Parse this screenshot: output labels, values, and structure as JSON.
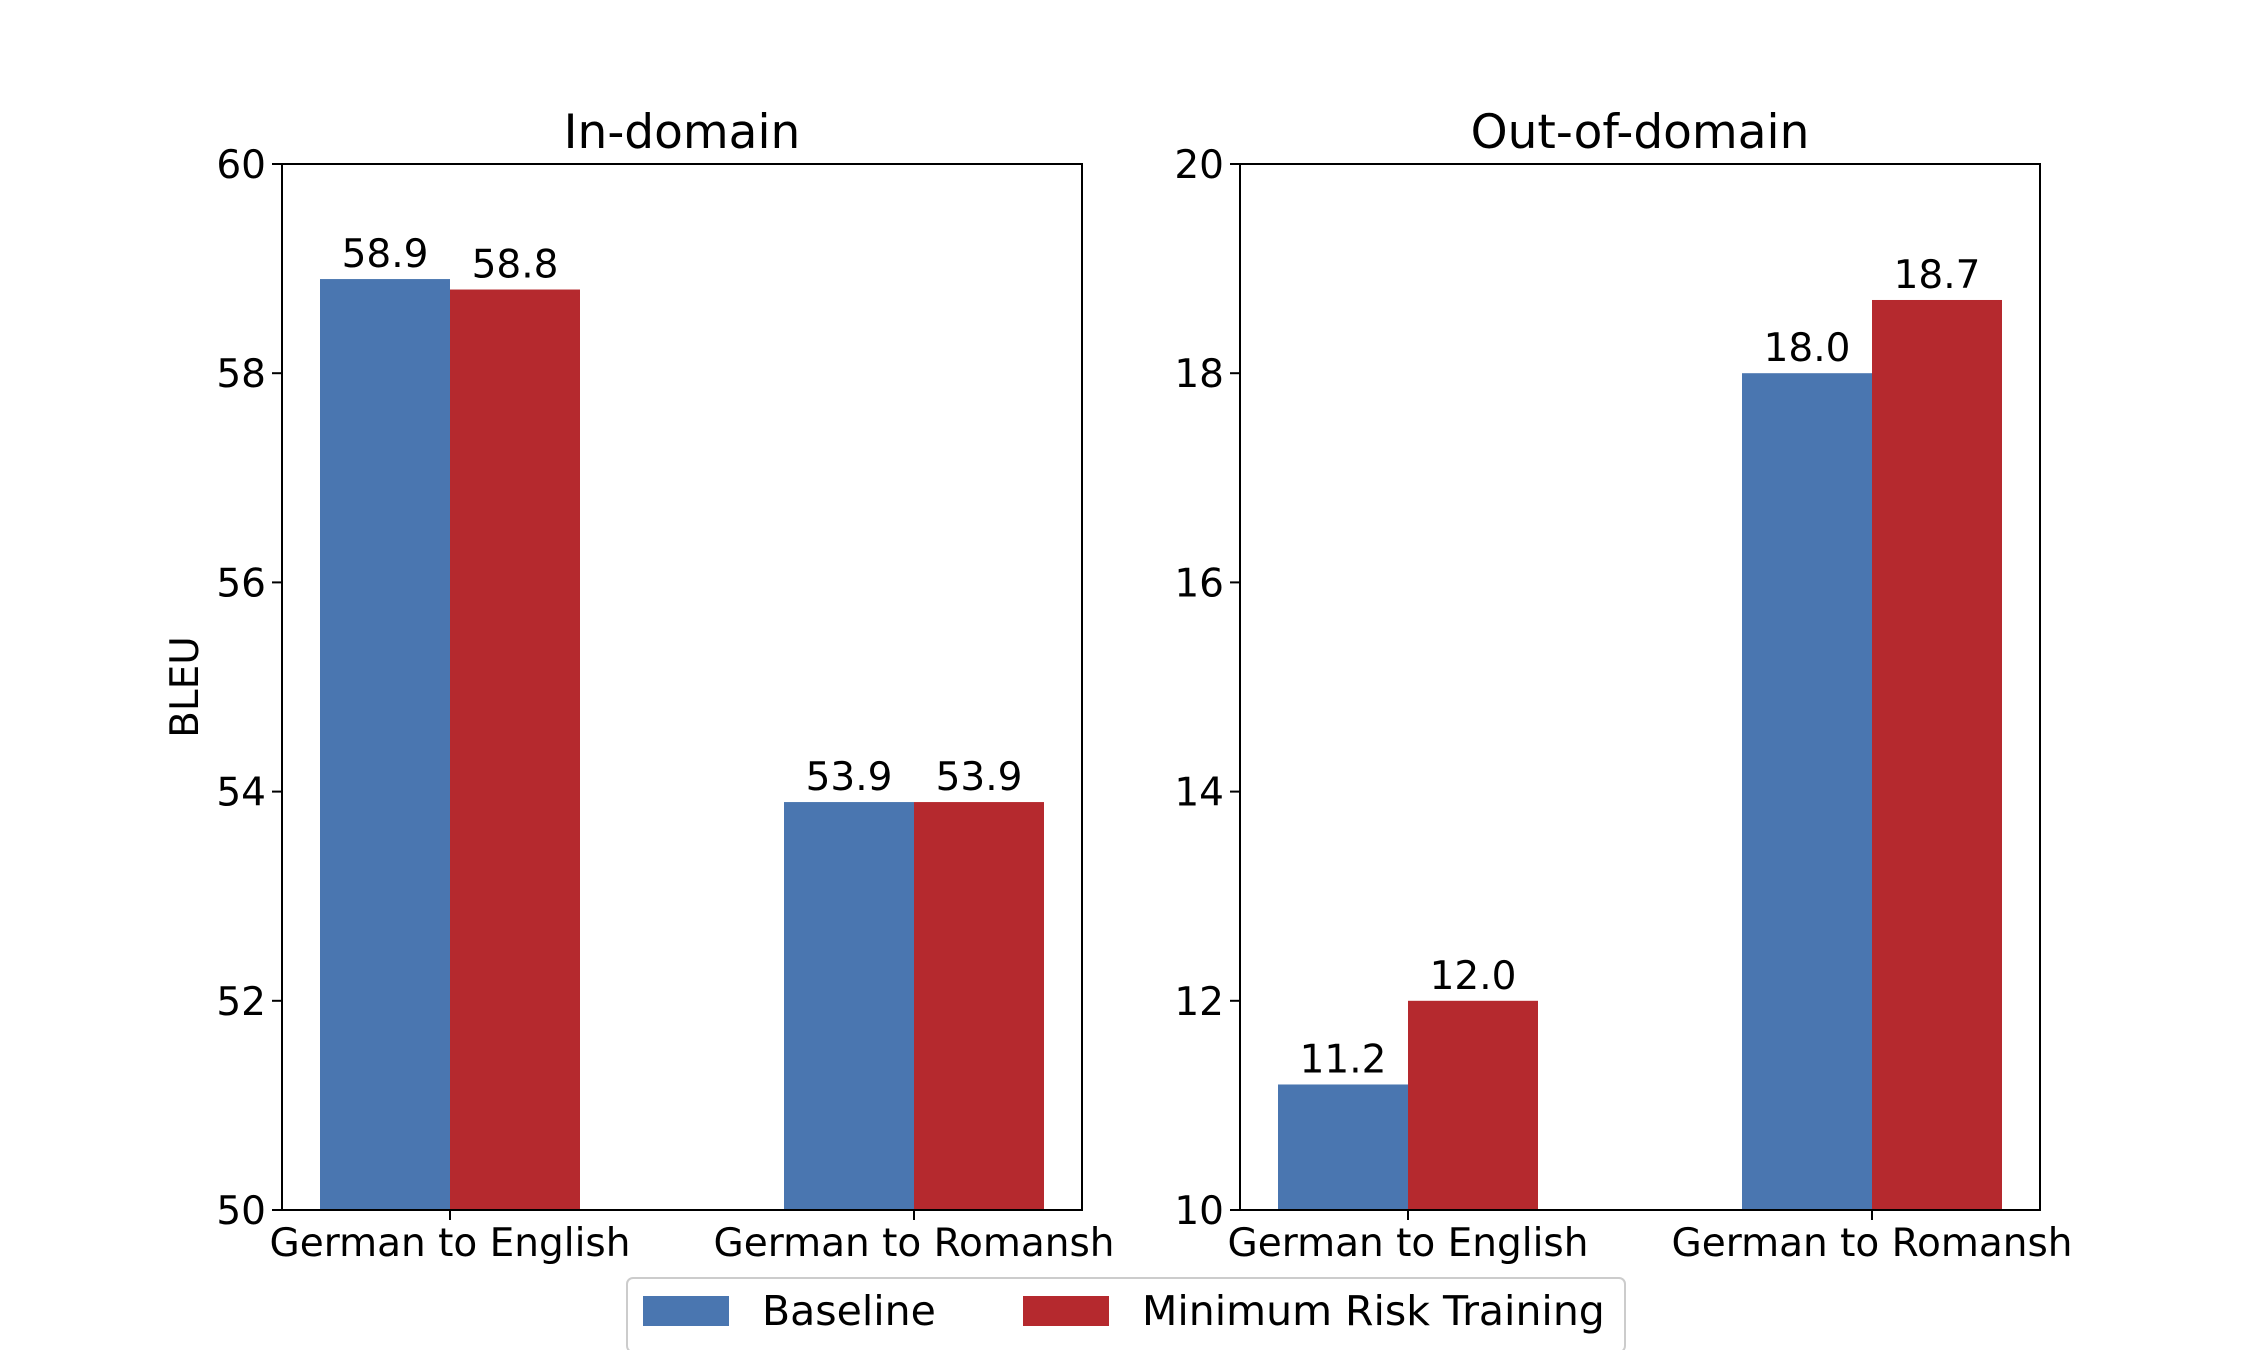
{
  "colors": {
    "baseline": "#4a76b0",
    "mrt": "#b5292e"
  },
  "legend": {
    "placement": "bottom-center",
    "items": [
      {
        "label": "Baseline",
        "color": "#4a76b0"
      },
      {
        "label": "Minimum Risk Training",
        "color": "#b5292e"
      }
    ]
  },
  "chart_data": [
    {
      "type": "bar",
      "title": "In-domain",
      "ylabel": "BLEU",
      "xlabel": "",
      "ylim": [
        50,
        60
      ],
      "yticks": [
        "50",
        "52",
        "54",
        "56",
        "58",
        "60"
      ],
      "categories": [
        "German to English",
        "German to Romansh"
      ],
      "series": [
        {
          "name": "Baseline",
          "values": [
            58.9,
            53.9
          ],
          "labels": [
            "58.9",
            "53.9"
          ]
        },
        {
          "name": "Minimum Risk Training",
          "values": [
            58.8,
            53.9
          ],
          "labels": [
            "58.8",
            "53.9"
          ]
        }
      ],
      "grid": false
    },
    {
      "type": "bar",
      "title": "Out-of-domain",
      "ylabel": "",
      "xlabel": "",
      "ylim": [
        10,
        20
      ],
      "yticks": [
        "10",
        "12",
        "14",
        "16",
        "18",
        "20"
      ],
      "categories": [
        "German to English",
        "German to Romansh"
      ],
      "series": [
        {
          "name": "Baseline",
          "values": [
            11.2,
            18.0
          ],
          "labels": [
            "11.2",
            "18.0"
          ]
        },
        {
          "name": "Minimum Risk Training",
          "values": [
            12.0,
            18.7
          ],
          "labels": [
            "12.0",
            "18.7"
          ]
        }
      ],
      "grid": false
    }
  ]
}
